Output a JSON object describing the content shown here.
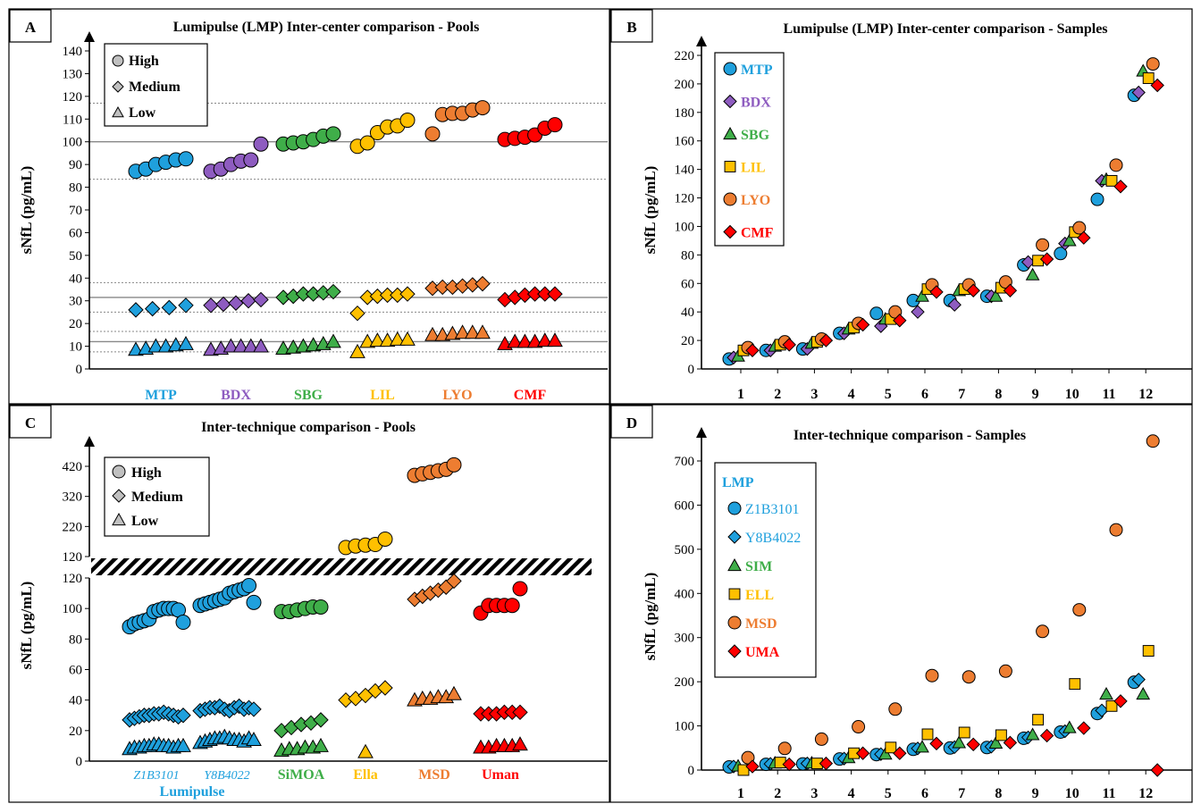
{
  "colors": {
    "MTP": "#1fa0dd",
    "BDX": "#8e5cc0",
    "SBG": "#3fae49",
    "LIL": "#ffc000",
    "LYO": "#ed7d31",
    "CMF": "#ff0000",
    "grid": "#888888"
  },
  "chart_data": [
    {
      "panel": "A",
      "type": "scatter",
      "title": "Lumipulse (LMP) Inter-center comparison - Pools",
      "ylabel": "sNfL (pg/mL)",
      "ylim": [
        0,
        140
      ],
      "yticks": [
        0,
        10,
        20,
        30,
        40,
        50,
        60,
        70,
        80,
        90,
        100,
        110,
        120,
        130,
        140
      ],
      "categories": [
        "MTP",
        "BDX",
        "SBG",
        "LIL",
        "LYO",
        "CMF"
      ],
      "legend": [
        {
          "name": "High",
          "marker": "circle"
        },
        {
          "name": "Medium",
          "marker": "diamond"
        },
        {
          "name": "Low",
          "marker": "triangle"
        }
      ],
      "ref_lines": {
        "solid": [
          100,
          31.5,
          12
        ],
        "dotted": [
          117,
          83.5,
          38,
          25,
          16.5,
          7.5
        ]
      },
      "series": [
        {
          "name": "High",
          "marker": "circle",
          "groups": [
            [
              87,
              88,
              90,
              91,
              92,
              92.5
            ],
            [
              87,
              88,
              90,
              91.5,
              92,
              99
            ],
            [
              99,
              99.5,
              100,
              101,
              102.5,
              103.5
            ],
            [
              98,
              99.5,
              104,
              106.5,
              107,
              109.5
            ],
            [
              103.5,
              112,
              112.5,
              112.5,
              114,
              115
            ],
            [
              101,
              101.5,
              102,
              103,
              106,
              107.5
            ]
          ]
        },
        {
          "name": "Medium",
          "marker": "diamond",
          "groups": [
            [
              26,
              26.5,
              27,
              28
            ],
            [
              28,
              28.5,
              29,
              30,
              30.5
            ],
            [
              31.5,
              32,
              33,
              33,
              33.5,
              34
            ],
            [
              24.5,
              31.5,
              32,
              32.5,
              32.5,
              33
            ],
            [
              35.5,
              36,
              36,
              36.5,
              37,
              37.5
            ],
            [
              30.5,
              31.5,
              32.5,
              33,
              33,
              33
            ]
          ]
        },
        {
          "name": "Low",
          "marker": "triangle",
          "groups": [
            [
              8.5,
              9,
              10,
              10,
              10.5,
              11
            ],
            [
              8.5,
              9,
              10,
              10,
              10,
              10
            ],
            [
              9,
              9.5,
              10,
              10.5,
              11,
              12
            ],
            [
              7.5,
              12,
              12.5,
              12.5,
              13,
              13
            ],
            [
              15,
              15,
              15.5,
              16,
              16,
              16
            ],
            [
              11,
              12,
              12,
              12,
              12.5,
              12.5
            ]
          ]
        }
      ]
    },
    {
      "panel": "B",
      "type": "scatter",
      "title": "Lumipulse (LMP) Inter-center comparison - Samples",
      "ylabel": "sNfL (pg/mL)",
      "ylim": [
        0,
        220
      ],
      "yticks": [
        0,
        20,
        40,
        60,
        80,
        100,
        120,
        140,
        160,
        180,
        200,
        220
      ],
      "categories": [
        "1",
        "2",
        "3",
        "4",
        "5",
        "6",
        "7",
        "8",
        "9",
        "10",
        "11",
        "12"
      ],
      "series": [
        {
          "name": "MTP",
          "marker": "circle",
          "values": [
            7,
            13,
            14,
            25,
            39,
            48,
            48,
            51,
            73,
            81,
            119,
            192
          ]
        },
        {
          "name": "BDX",
          "marker": "diamond",
          "values": [
            8,
            13,
            14,
            25,
            30,
            40,
            45,
            51,
            75,
            88,
            132,
            194
          ]
        },
        {
          "name": "SBG",
          "marker": "triangle",
          "values": [
            9,
            16,
            18,
            28,
            35,
            51,
            55,
            51,
            66,
            90,
            133,
            209
          ]
        },
        {
          "name": "LIL",
          "marker": "square",
          "values": [
            13,
            17,
            19,
            29,
            35,
            56,
            56,
            57,
            76,
            96,
            132,
            204
          ]
        },
        {
          "name": "LYO",
          "marker": "circle",
          "values": [
            15,
            19,
            21,
            32,
            40,
            59,
            59,
            61,
            87,
            99,
            143,
            214
          ]
        },
        {
          "name": "CMF",
          "marker": "diamond",
          "values": [
            13,
            17,
            20,
            31,
            34,
            54,
            55,
            55,
            77,
            92,
            128,
            199
          ]
        }
      ]
    },
    {
      "panel": "C",
      "type": "scatter",
      "title": "Inter-technique comparison - Pools",
      "ylabel": "sNfL (pg/mL)",
      "yticks_lower": [
        0,
        20,
        40,
        60,
        80,
        100,
        120
      ],
      "yticks_upper": [
        120,
        220,
        320,
        420
      ],
      "categories": [
        "Z1B3101",
        "Y8B4022",
        "SiMOA",
        "Ella",
        "MSD",
        "Uman"
      ],
      "group_label": "Lumipulse",
      "legend": [
        {
          "name": "High",
          "marker": "circle"
        },
        {
          "name": "Medium",
          "marker": "diamond"
        },
        {
          "name": "Low",
          "marker": "triangle"
        }
      ],
      "series": [
        {
          "name": "High",
          "marker": "circle",
          "groups": [
            [
              88,
              90,
              91,
              92,
              93,
              98,
              99,
              100,
              100,
              100,
              99,
              91
            ],
            [
              102,
              103,
              104,
              105,
              106,
              107,
              110,
              111,
              112,
              113,
              115,
              104
            ],
            [
              98,
              98,
              99,
              100,
              101,
              101
            ],
            [
              150,
              155,
              158,
              160,
              178
            ],
            [
              390,
              395,
              400,
              405,
              410,
              425
            ],
            [
              97,
              102,
              102,
              102,
              102,
              113
            ]
          ]
        },
        {
          "name": "Medium",
          "marker": "diamond",
          "groups": [
            [
              27,
              28,
              29,
              30,
              30,
              31,
              31,
              32,
              31,
              30,
              29,
              30
            ],
            [
              33,
              34,
              35,
              35,
              36,
              34,
              33,
              35,
              36,
              34,
              35,
              34
            ],
            [
              20,
              22,
              24,
              25,
              27
            ],
            [
              40,
              41,
              43,
              46,
              48
            ],
            [
              106,
              108,
              110,
              112,
              114,
              118
            ],
            [
              31,
              31,
              31,
              32,
              32,
              32
            ]
          ]
        },
        {
          "name": "Low",
          "marker": "triangle",
          "groups": [
            [
              8,
              9,
              9,
              10,
              10,
              11,
              11,
              10,
              10,
              9,
              10,
              10
            ],
            [
              12,
              13,
              14,
              15,
              15,
              16,
              15,
              14,
              14,
              13,
              15,
              14
            ],
            [
              7,
              8,
              8,
              9,
              9,
              10
            ],
            [
              6
            ],
            [
              40,
              41,
              41,
              42,
              42,
              44
            ],
            [
              9,
              9,
              10,
              10,
              10,
              11
            ]
          ]
        }
      ]
    },
    {
      "panel": "D",
      "type": "scatter",
      "title": "Inter-technique comparison - Samples",
      "ylabel": "sNfL (pg/mL)",
      "ylim": [
        0,
        700
      ],
      "yticks": [
        0,
        100,
        200,
        300,
        400,
        500,
        600,
        700
      ],
      "categories": [
        "1",
        "2",
        "3",
        "4",
        "5",
        "6",
        "7",
        "8",
        "9",
        "10",
        "11",
        "12"
      ],
      "legend_title": "LMP",
      "series": [
        {
          "name": "Z1B3101",
          "marker": "circle",
          "values": [
            7,
            13,
            14,
            25,
            35,
            47,
            50,
            51,
            72,
            86,
            128,
            199
          ]
        },
        {
          "name": "Y8B4022",
          "marker": "diamond",
          "values": [
            8,
            14,
            15,
            26,
            36,
            49,
            52,
            53,
            74,
            88,
            135,
            205
          ]
        },
        {
          "name": "SIM",
          "marker": "triangle",
          "values": [
            9,
            16,
            16,
            28,
            36,
            52,
            62,
            61,
            80,
            96,
            172,
            172
          ]
        },
        {
          "name": "ELL",
          "marker": "square",
          "values": [
            0,
            17,
            15,
            38,
            51,
            81,
            85,
            79,
            114,
            195,
            145,
            270
          ]
        },
        {
          "name": "MSD",
          "marker": "circle",
          "values": [
            28,
            49,
            70,
            98,
            138,
            214,
            211,
            224,
            314,
            363,
            544,
            745
          ]
        },
        {
          "name": "UMA",
          "marker": "diamond",
          "values": [
            8,
            13,
            15,
            38,
            38,
            60,
            58,
            62,
            78,
            95,
            156,
            0
          ]
        }
      ]
    }
  ]
}
